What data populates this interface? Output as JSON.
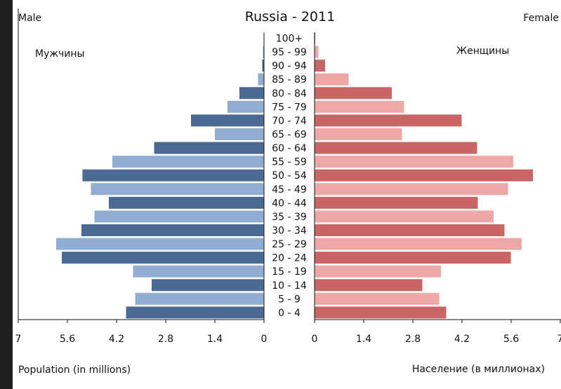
{
  "chart_data": {
    "type": "bar",
    "title": "Russia - 2011",
    "left_header": "Male",
    "right_header": "Female",
    "left_subtitle": "Мужчины",
    "right_subtitle": "Женщины",
    "left_xlabel": "Population (in millions)",
    "right_xlabel": "Население (в миллионах)",
    "xlim": [
      0,
      7
    ],
    "left_ticks": [
      "7",
      "5.6",
      "4.2",
      "2.8",
      "1.4",
      "0"
    ],
    "right_ticks": [
      "0",
      "1.4",
      "2.8",
      "4.2",
      "5.6",
      "7"
    ],
    "categories": [
      "100+",
      "95 - 99",
      "90 - 94",
      "85 - 89",
      "80 - 84",
      "75 - 79",
      "70 - 74",
      "65 - 69",
      "60 - 64",
      "55 - 59",
      "50 - 54",
      "45 - 49",
      "40 - 44",
      "35 - 39",
      "30 - 34",
      "25 - 29",
      "20 - 24",
      "15 - 19",
      "10 - 14",
      "5 - 9",
      "0 - 4"
    ],
    "series": [
      {
        "values": [
          0.01,
          0.03,
          0.05,
          0.17,
          0.7,
          1.04,
          2.08,
          1.4,
          3.13,
          4.32,
          5.17,
          4.93,
          4.42,
          4.83,
          5.2,
          5.92,
          5.76,
          3.73,
          3.2,
          3.67,
          3.93
        ]
      },
      {
        "values": [
          0.02,
          0.11,
          0.3,
          0.97,
          2.2,
          2.55,
          4.19,
          2.49,
          4.63,
          5.66,
          6.22,
          5.51,
          4.65,
          5.1,
          5.41,
          5.9,
          5.59,
          3.6,
          3.07,
          3.55,
          3.75
        ]
      }
    ],
    "colors": {
      "male_dark": "#4a6a93",
      "male_light": "#91aed2",
      "female_dark": "#c96565",
      "female_light": "#eea7a7"
    },
    "grid": false
  }
}
